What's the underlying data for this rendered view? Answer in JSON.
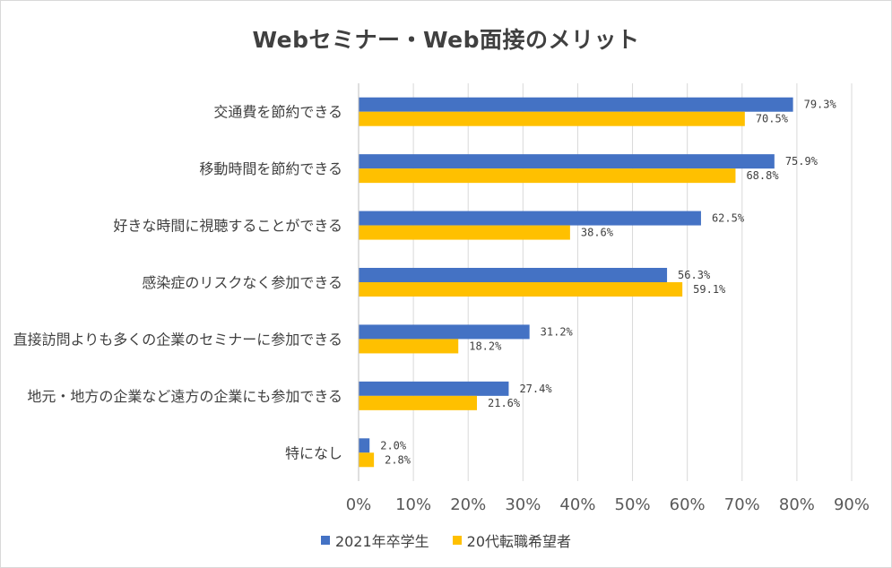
{
  "chart_data": {
    "type": "bar",
    "orientation": "horizontal",
    "title": "Webセミナー・Web面接のメリット",
    "categories": [
      "交通費を節約できる",
      "移動時間を節約できる",
      "好きな時間に視聴することができる",
      "感染症のリスクなく参加できる",
      "直接訪問よりも多くの企業のセミナーに参加できる",
      "地元・地方の企業など遠方の企業にも参加できる",
      "特になし"
    ],
    "series": [
      {
        "name": "2021年卒学生",
        "color": "#4472c4",
        "values": [
          79.3,
          75.9,
          62.5,
          56.3,
          31.2,
          27.4,
          2.0
        ]
      },
      {
        "name": "20代転職希望者",
        "color": "#ffc000",
        "values": [
          70.5,
          68.8,
          38.6,
          59.1,
          18.2,
          21.6,
          2.8
        ]
      }
    ],
    "value_unit": "%",
    "xlim": [
      0,
      90
    ],
    "xticks": [
      0,
      10,
      20,
      30,
      40,
      50,
      60,
      70,
      80,
      90
    ],
    "xtick_labels": [
      "0%",
      "10%",
      "20%",
      "30%",
      "40%",
      "50%",
      "60%",
      "70%",
      "80%",
      "90%"
    ],
    "grid": "vertical",
    "legend_position": "bottom"
  }
}
